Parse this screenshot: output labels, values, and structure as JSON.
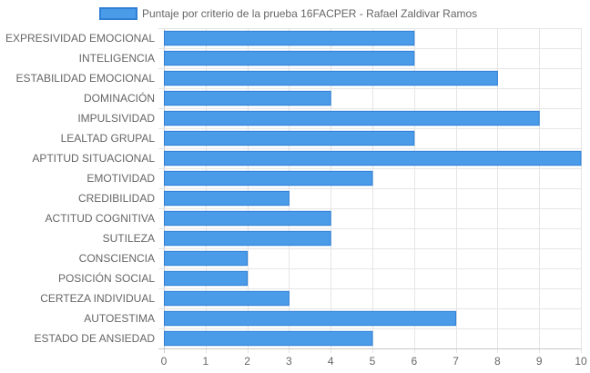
{
  "chart_data": {
    "type": "bar",
    "orientation": "horizontal",
    "categories": [
      "EXPRESIVIDAD EMOCIONAL",
      "INTELIGENCIA",
      "ESTABILIDAD EMOCIONAL",
      "DOMINACIÓN",
      "IMPULSIVIDAD",
      "LEALTAD GRUPAL",
      "APTITUD SITUACIONAL",
      "EMOTIVIDAD",
      "CREDIBILIDAD",
      "ACTITUD COGNITIVA",
      "SUTILEZA",
      "CONSCIENCIA",
      "POSICIÓN SOCIAL",
      "CERTEZA INDIVIDUAL",
      "AUTOESTIMA",
      "ESTADO DE ANSIEDAD"
    ],
    "series": [
      {
        "name": "Puntaje por criterio de la prueba 16FACPER - Rafael Zaldivar Ramos",
        "values": [
          6,
          6,
          8,
          4,
          9,
          6,
          10,
          5,
          3,
          4,
          4,
          2,
          2,
          3,
          7,
          5
        ],
        "color": "#4a9be8",
        "border_color": "#2f7fd6"
      }
    ],
    "xlim": [
      0,
      10
    ],
    "x_ticks": [
      0,
      1,
      2,
      3,
      4,
      5,
      6,
      7,
      8,
      9,
      10
    ],
    "title": "",
    "xlabel": "",
    "ylabel": "",
    "grid": true,
    "legend": "top-center"
  }
}
